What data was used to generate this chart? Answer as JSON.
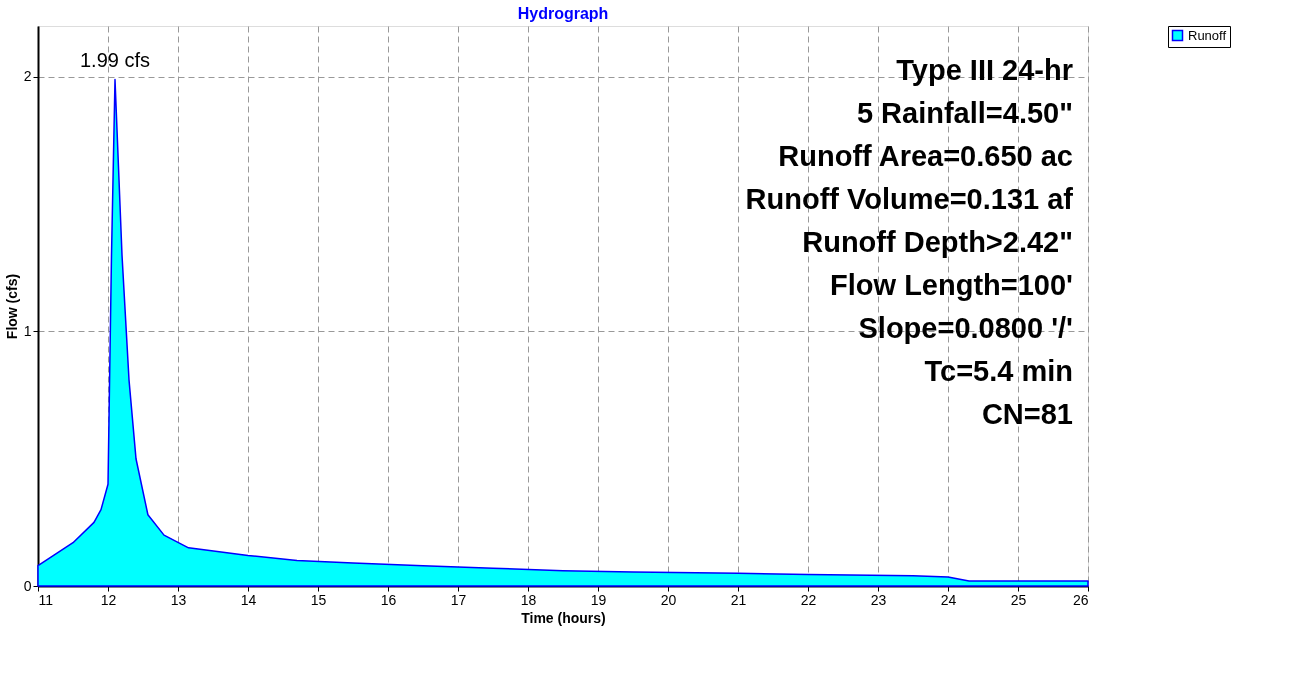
{
  "chart_data": {
    "type": "area",
    "title": "Hydrograph",
    "xlabel": "Time  (hours)",
    "ylabel": "Flow  (cfs)",
    "x": [
      11.0,
      11.5,
      11.8,
      11.9,
      12.0,
      12.05,
      12.1,
      12.2,
      12.3,
      12.4,
      12.57,
      12.8,
      13.15,
      14.0,
      14.7,
      15.5,
      16.5,
      17.5,
      18.5,
      19.5,
      21.0,
      22.0,
      23.5,
      24.0,
      24.3,
      26.0
    ],
    "series": [
      {
        "name": "Runoff",
        "color": "#00ffff",
        "values": [
          0.08,
          0.17,
          0.25,
          0.3,
          0.4,
          1.3,
          1.99,
          1.3,
          0.81,
          0.5,
          0.28,
          0.2,
          0.15,
          0.12,
          0.1,
          0.09,
          0.08,
          0.07,
          0.06,
          0.055,
          0.05,
          0.045,
          0.04,
          0.035,
          0.02,
          0.02
        ]
      }
    ],
    "xlim": [
      11,
      26
    ],
    "ylim": [
      0,
      2.2
    ],
    "xticks": [
      11,
      12,
      13,
      14,
      15,
      16,
      17,
      18,
      19,
      20,
      21,
      22,
      23,
      24,
      25,
      26
    ],
    "yticks": [
      0,
      1,
      2
    ],
    "grid": true,
    "legend": "top right",
    "annotations": [
      {
        "text": "1.99 cfs",
        "x": 12.1,
        "y": 1.99
      },
      "Type III 24-hr",
      "5 Rainfall=4.50\"",
      "Runoff Area=0.650 ac",
      "Runoff Volume=0.131 af",
      "Runoff Depth>2.42\"",
      "Flow Length=100'",
      "Slope=0.0800 '/'",
      "Tc=5.4 min",
      "CN=81"
    ]
  }
}
